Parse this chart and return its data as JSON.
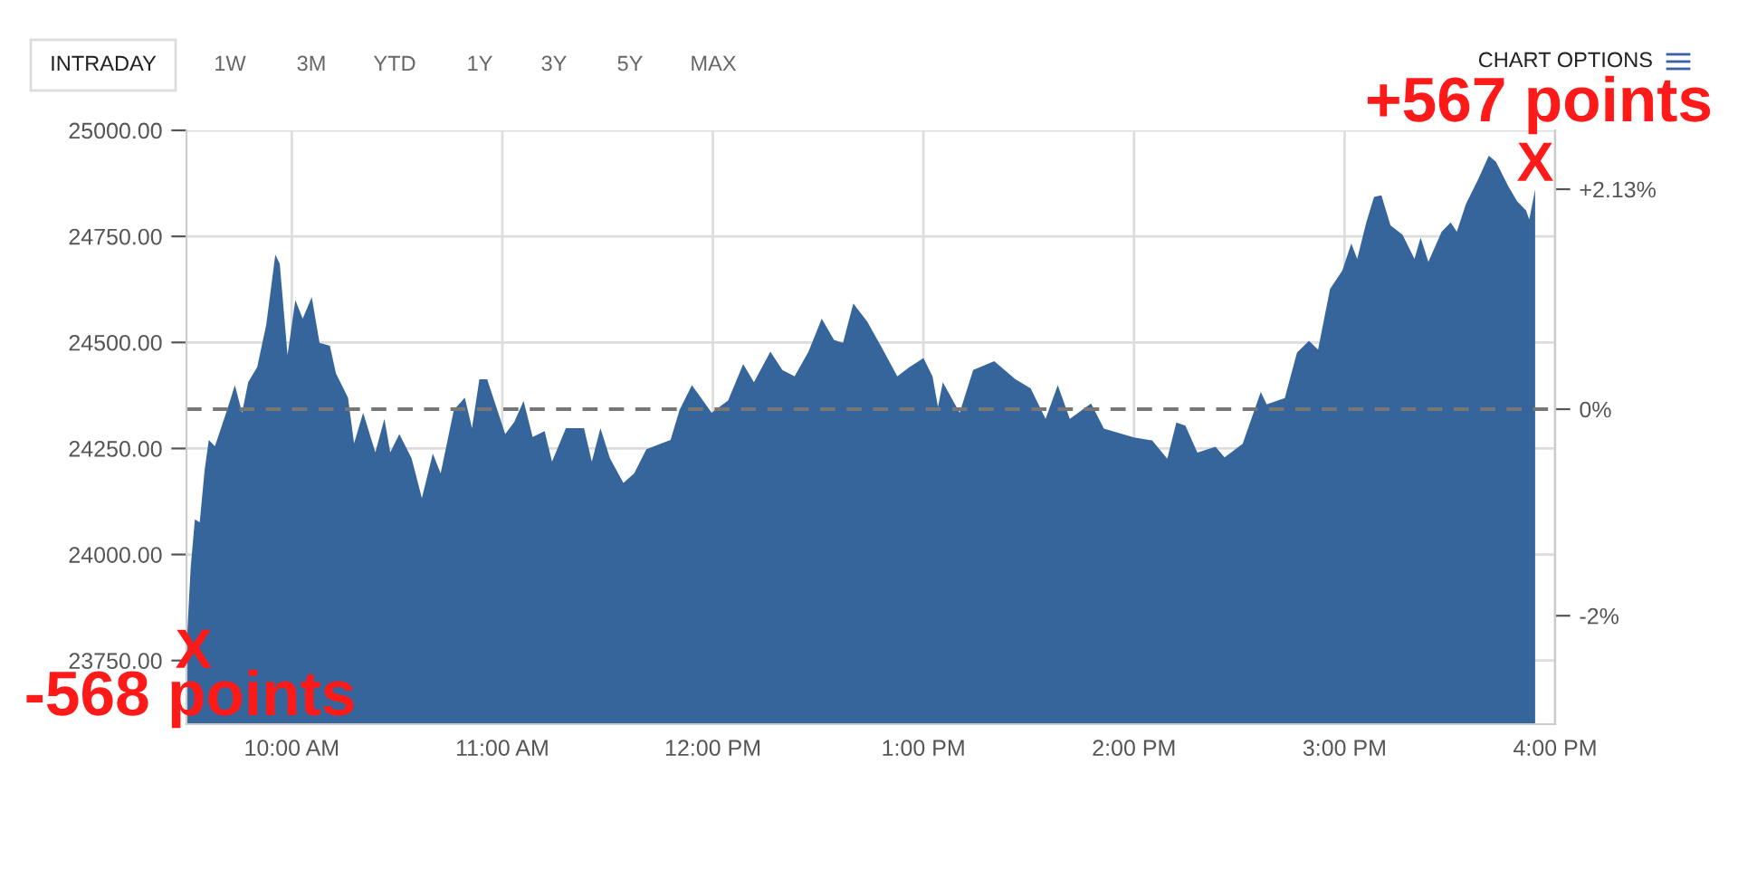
{
  "chart_data": {
    "type": "area",
    "color": "#35659a",
    "x": [
      9.5,
      9.52,
      9.54,
      9.563,
      9.586,
      9.606,
      9.635,
      9.664,
      9.693,
      9.73,
      9.764,
      9.793,
      9.836,
      9.879,
      9.922,
      9.943,
      9.98,
      10.017,
      10.052,
      10.095,
      10.132,
      10.181,
      10.21,
      10.267,
      10.296,
      10.339,
      10.397,
      10.44,
      10.468,
      10.511,
      10.569,
      10.618,
      10.67,
      10.707,
      10.77,
      10.822,
      10.856,
      10.891,
      10.928,
      11.014,
      11.057,
      11.101,
      11.144,
      11.201,
      11.236,
      11.302,
      11.388,
      11.425,
      11.466,
      11.511,
      11.575,
      11.626,
      11.684,
      11.799,
      11.842,
      11.9,
      11.943,
      11.994,
      12.072,
      12.144,
      12.195,
      12.273,
      12.33,
      12.388,
      12.454,
      12.517,
      12.575,
      12.618,
      12.667,
      12.733,
      12.805,
      12.876,
      12.934,
      13.0,
      13.043,
      13.069,
      13.092,
      13.172,
      13.236,
      13.336,
      13.437,
      13.509,
      13.58,
      13.638,
      13.695,
      13.796,
      13.857,
      14.0,
      14.086,
      14.158,
      14.201,
      14.244,
      14.301,
      14.387,
      14.43,
      14.516,
      14.602,
      14.63,
      14.716,
      14.774,
      14.831,
      14.874,
      14.931,
      14.989,
      15.032,
      15.06,
      15.103,
      15.14,
      15.175,
      15.218,
      15.275,
      15.332,
      15.361,
      15.398,
      15.461,
      15.504,
      15.533,
      15.576,
      15.633,
      15.685,
      15.719,
      15.777,
      15.819,
      15.862,
      15.877,
      15.905
    ],
    "values": [
      23780,
      23969,
      24083,
      24076,
      24198,
      24270,
      24255,
      24298,
      24341,
      24399,
      24334,
      24406,
      24442,
      24542,
      24707,
      24685,
      24470,
      24600,
      24556,
      24607,
      24499,
      24492,
      24427,
      24370,
      24262,
      24334,
      24241,
      24320,
      24241,
      24284,
      24227,
      24133,
      24238,
      24191,
      24341,
      24370,
      24298,
      24413,
      24413,
      24284,
      24313,
      24362,
      24277,
      24291,
      24219,
      24298,
      24298,
      24219,
      24298,
      24227,
      24169,
      24191,
      24248,
      24270,
      24341,
      24399,
      24370,
      24334,
      24363,
      24449,
      24406,
      24478,
      24435,
      24420,
      24478,
      24556,
      24506,
      24499,
      24592,
      24549,
      24485,
      24420,
      24442,
      24463,
      24420,
      24348,
      24406,
      24334,
      24435,
      24456,
      24413,
      24392,
      24320,
      24399,
      24320,
      24356,
      24297,
      24276,
      24269,
      24226,
      24311,
      24304,
      24240,
      24254,
      24229,
      24261,
      24383,
      24354,
      24369,
      24476,
      24504,
      24483,
      24626,
      24669,
      24733,
      24697,
      24783,
      24843,
      24847,
      24776,
      24754,
      24697,
      24747,
      24690,
      24761,
      24783,
      24761,
      24826,
      24883,
      24940,
      24926,
      24869,
      24833,
      24811,
      24790,
      24861
    ],
    "xlim": [
      9.5,
      16
    ],
    "xticks": [
      {
        "value": 10,
        "label": "10:00 AM"
      },
      {
        "value": 11,
        "label": "11:00 AM"
      },
      {
        "value": 12,
        "label": "12:00 PM"
      },
      {
        "value": 13,
        "label": "1:00 PM"
      },
      {
        "value": 14,
        "label": "2:00 PM"
      },
      {
        "value": 15,
        "label": "3:00 PM"
      },
      {
        "value": 16,
        "label": "4:00 PM"
      }
    ],
    "ylim": [
      23600,
      25000
    ],
    "yticks": [
      {
        "value": 23750,
        "label": "23750.00"
      },
      {
        "value": 24000,
        "label": "24000.00"
      },
      {
        "value": 24250,
        "label": "24250.00"
      },
      {
        "value": 24500,
        "label": "24500.00"
      },
      {
        "value": 24750,
        "label": "24750.00"
      },
      {
        "value": 25000,
        "label": "25000.00"
      }
    ],
    "y2lim": [
      -3.05,
      2.7
    ],
    "y2ticks": [
      {
        "value": -2,
        "label": "-2%"
      },
      {
        "value": 0,
        "label": "0%"
      },
      {
        "value": 2.13,
        "label": "+2.13%"
      }
    ],
    "ref_lines": [
      {
        "axis": "y2",
        "value": 0,
        "color": "#777777",
        "line_style": "dashed"
      }
    ],
    "grid": true,
    "annotations": [
      "X",
      "-568 points",
      "X",
      "+567 points",
      "INTRADAY",
      "1W",
      "3M",
      "YTD",
      "1Y",
      "3Y",
      "5Y",
      "MAX",
      "CHART OPTIONS"
    ]
  }
}
